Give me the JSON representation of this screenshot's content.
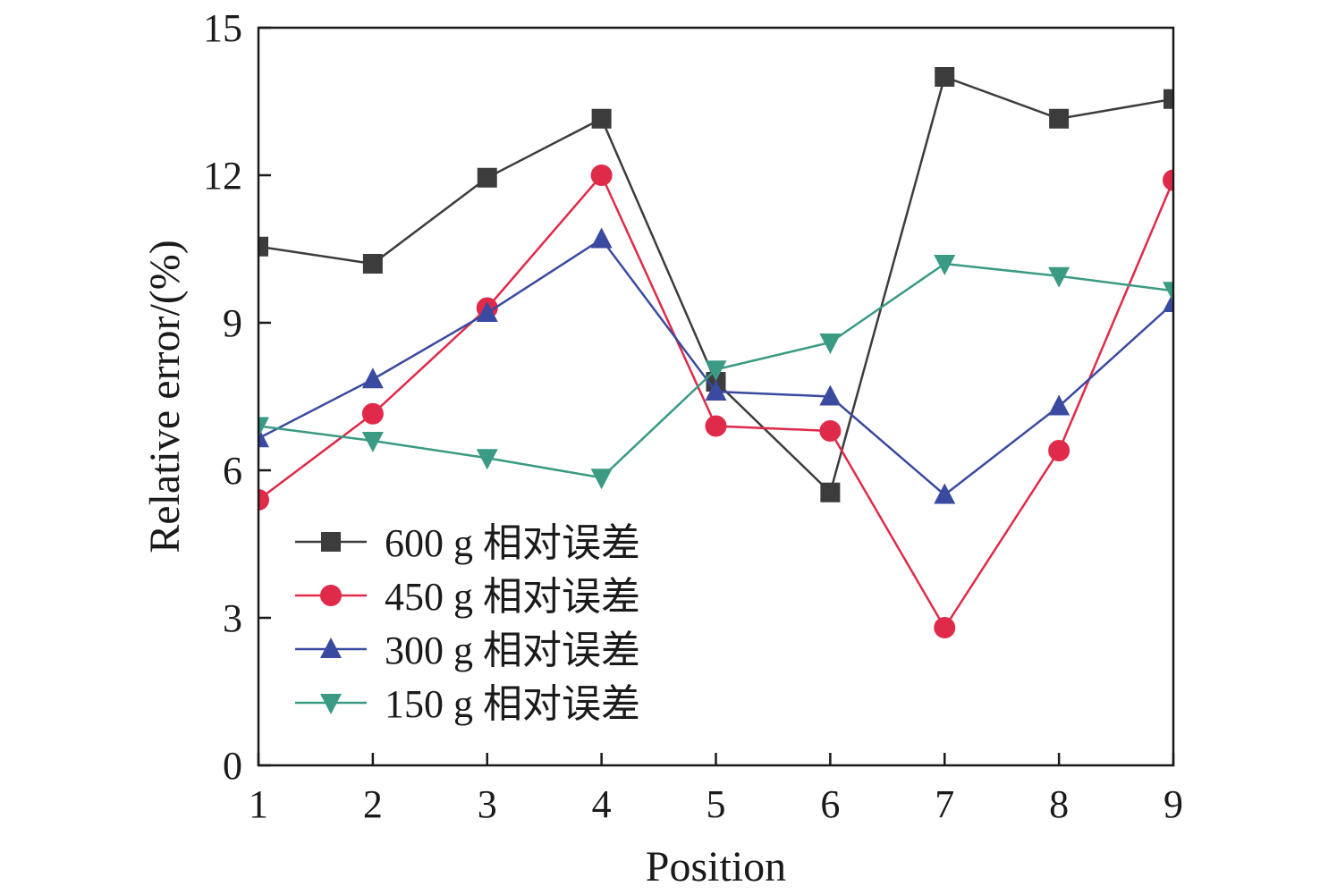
{
  "chart_data": {
    "type": "line",
    "title": "",
    "xlabel": "Position",
    "ylabel": "Relative error/(%)",
    "xlim": [
      1,
      9
    ],
    "ylim": [
      0,
      15
    ],
    "x": [
      1,
      2,
      3,
      4,
      5,
      6,
      7,
      8,
      9
    ],
    "xticks": [
      "1",
      "2",
      "3",
      "4",
      "5",
      "6",
      "7",
      "8",
      "9"
    ],
    "yticks": [
      "0",
      "3",
      "6",
      "9",
      "12",
      "15"
    ],
    "legend_position": "lower-left",
    "grid": false,
    "series": [
      {
        "name": "600 g 相对误差",
        "color": "#3c3c3c",
        "marker": "square",
        "values": [
          10.55,
          10.2,
          11.95,
          13.15,
          7.8,
          5.55,
          14.0,
          13.15,
          13.55
        ]
      },
      {
        "name": "450 g 相对误差",
        "color": "#e02a4a",
        "marker": "circle",
        "values": [
          5.4,
          7.15,
          9.3,
          12.0,
          6.9,
          6.8,
          2.8,
          6.4,
          11.9
        ]
      },
      {
        "name": "300 g 相对误差",
        "color": "#3a4aa0",
        "marker": "triangle-up",
        "values": [
          6.65,
          7.85,
          9.2,
          10.7,
          7.6,
          7.5,
          5.5,
          7.3,
          9.4
        ]
      },
      {
        "name": "150 g 相对误差",
        "color": "#3a9a84",
        "marker": "triangle-down",
        "values": [
          6.9,
          6.6,
          6.25,
          5.85,
          8.05,
          8.6,
          10.2,
          9.95,
          9.65
        ]
      }
    ]
  }
}
